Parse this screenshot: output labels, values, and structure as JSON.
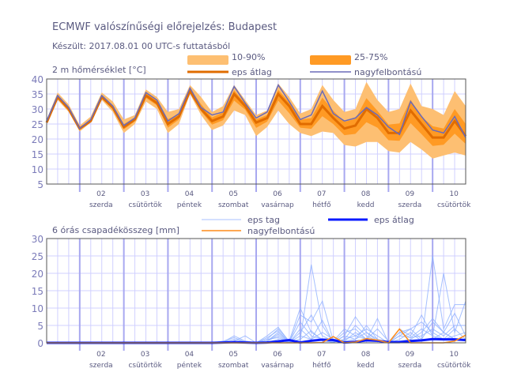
{
  "title": "ECMWF valószínűségi előrejelzés: Budapest",
  "subtitle": "Készült: 2017.08.01 00 UTC-s futtatásból",
  "colors": {
    "band_10_90": "#fdbf72",
    "band_25_75": "#ff9a24",
    "eps_mean_temp": "#e06c00",
    "hres_temp": "#6a6ab8",
    "eps_member": "#8fb0ff",
    "eps_mean_precip": "#0a1aff",
    "hres_precip": "#ff8c1a",
    "grid": "#d0d0ff",
    "day_line": "#a8a8f0"
  },
  "days": [
    {
      "num": "02",
      "name": "szerda"
    },
    {
      "num": "03",
      "name": "csütörtök"
    },
    {
      "num": "04",
      "name": "péntek"
    },
    {
      "num": "05",
      "name": "szombat"
    },
    {
      "num": "06",
      "name": "vasárnap"
    },
    {
      "num": "07",
      "name": "hétfő"
    },
    {
      "num": "08",
      "name": "kedd"
    },
    {
      "num": "09",
      "name": "szerda"
    },
    {
      "num": "10",
      "name": "csütörtök"
    }
  ],
  "chart_data": [
    {
      "type": "area",
      "title": "2 m hőmérséklet [°C]",
      "x_step_hours": 6,
      "ylim": [
        5,
        40
      ],
      "yticks": [
        5,
        10,
        15,
        20,
        25,
        30,
        35,
        40
      ],
      "legend": {
        "band_10_90": "10-90%",
        "band_25_75": "25-75%",
        "eps_mean": "eps átlag",
        "hres": "nagyfelbontású"
      },
      "hres": [
        26,
        34.5,
        30.5,
        23.5,
        26.5,
        34.5,
        31,
        24.5,
        27,
        35.5,
        33,
        26,
        28.5,
        37,
        30.5,
        28,
        29,
        37.5,
        32,
        27,
        29,
        38,
        32.5,
        26.5,
        28,
        36,
        28.5,
        26,
        27,
        30.5,
        28,
        24,
        21.5,
        32.5,
        27.5,
        23,
        22,
        27.5,
        20.5
      ],
      "eps_mean": [
        25.5,
        34,
        30,
        23.5,
        26,
        34,
        30.5,
        24,
        26.5,
        34.5,
        32,
        25,
        27.5,
        36,
        30,
        26,
        27.5,
        35,
        31,
        25.5,
        27,
        35,
        31,
        25,
        25,
        31,
        27,
        23.5,
        24.5,
        30,
        27,
        22,
        22,
        29.5,
        25,
        20.5,
        20.5,
        26,
        21
      ],
      "p10": [
        25,
        33,
        29,
        22.5,
        25.5,
        33,
        29,
        22,
        25,
        32.5,
        30,
        22,
        25,
        35,
        28,
        23,
        24.5,
        29.5,
        28,
        21,
        24,
        29.5,
        25,
        22,
        21,
        22.5,
        22,
        18,
        17.5,
        19,
        19,
        16,
        15.5,
        19,
        16.5,
        13.5,
        14.5,
        15.5,
        14.5
      ],
      "p25": [
        25.3,
        33.6,
        29.6,
        23.1,
        25.8,
        33.6,
        29.9,
        23.2,
        25.9,
        33.7,
        31.2,
        23.8,
        26.5,
        35.6,
        29.2,
        24.8,
        26.3,
        32.8,
        29.8,
        23.7,
        25.8,
        32.8,
        28.6,
        23.8,
        23.4,
        27.6,
        25,
        21.3,
        21.7,
        25.6,
        23.8,
        19.6,
        19.4,
        25.3,
        21.6,
        17.7,
        18.1,
        21.8,
        18.4
      ],
      "p75": [
        25.9,
        34.6,
        30.6,
        23.9,
        26.6,
        34.6,
        31.3,
        25,
        27.1,
        35.3,
        32.8,
        26.6,
        28.5,
        36.8,
        31.6,
        27.2,
        28.9,
        36.2,
        31.8,
        26.5,
        28,
        36.4,
        32.2,
        26.4,
        27,
        33.8,
        29.4,
        25.7,
        26.7,
        33.6,
        29.4,
        24.8,
        25.2,
        33.1,
        27.4,
        24.3,
        23.5,
        30,
        25
      ],
      "p90": [
        26.5,
        35.5,
        31.5,
        24.5,
        27.5,
        35.5,
        32.5,
        26.5,
        28,
        36.5,
        34,
        29,
        30,
        38,
        34,
        29,
        31,
        38,
        33,
        28,
        29.5,
        38.5,
        34,
        28.5,
        30,
        38,
        33,
        29,
        30,
        39,
        33,
        29,
        30,
        38.5,
        31,
        30,
        28,
        36,
        31
      ]
    },
    {
      "type": "line",
      "title": "6 órás csapadékösszeg [mm]",
      "x_step_hours": 6,
      "ylim": [
        0,
        30
      ],
      "yticks": [
        0,
        5,
        10,
        15,
        20,
        25,
        30
      ],
      "legend": {
        "members": "eps tag",
        "eps_mean": "eps átlag",
        "hres": "nagyfelbontású"
      },
      "eps_mean": [
        0,
        0,
        0,
        0,
        0,
        0,
        0,
        0,
        0,
        0,
        0,
        0,
        0,
        0,
        0,
        0,
        0.1,
        0.2,
        0.1,
        0,
        0.1,
        0.4,
        0.8,
        0.1,
        0.6,
        0.9,
        0.8,
        0.1,
        0.3,
        0.7,
        0.6,
        0.2,
        0.2,
        0.5,
        0.7,
        1.1,
        1,
        1,
        0.8
      ],
      "hres": [
        0,
        0,
        0,
        0,
        0,
        0,
        0,
        0,
        0,
        0,
        0,
        0,
        0,
        0,
        0,
        0,
        0,
        0,
        0,
        0,
        0,
        0,
        0,
        0,
        0,
        0.1,
        1.8,
        0,
        0.2,
        1.2,
        0.8,
        0,
        4,
        0,
        0,
        0,
        0,
        0.5,
        2.2
      ],
      "members": [
        [
          0,
          0,
          0,
          0,
          0,
          0,
          0,
          0,
          0,
          0,
          0,
          0,
          0,
          0,
          0,
          0,
          0.5,
          1.5,
          0.3,
          0,
          1,
          4,
          0.5,
          10,
          3,
          1,
          0,
          2,
          7.5,
          3,
          1,
          0,
          2,
          4,
          1,
          6,
          3,
          1,
          0.5
        ],
        [
          0,
          0,
          0,
          0,
          0,
          0,
          0,
          0,
          0,
          0,
          0,
          0,
          0,
          0,
          0,
          0,
          0.2,
          2,
          0.5,
          0,
          2,
          4.5,
          0.3,
          1,
          22.5,
          5,
          0.2,
          1,
          5,
          2,
          0.5,
          0,
          1,
          3,
          0.5,
          25,
          4,
          11,
          11
        ],
        [
          0,
          0,
          0,
          0,
          0,
          0,
          0,
          0,
          0,
          0,
          0,
          0,
          0,
          0,
          0,
          0,
          0,
          0.5,
          2,
          0,
          0.5,
          3,
          0.2,
          8,
          6,
          12,
          0.5,
          0.5,
          1,
          5,
          1,
          0,
          4,
          2,
          8,
          2,
          20,
          3,
          12
        ],
        [
          0,
          0,
          0,
          0,
          0,
          0,
          0,
          0,
          0,
          0,
          0,
          0,
          0,
          0,
          0,
          0,
          0.3,
          1,
          0.2,
          0,
          1.5,
          3.5,
          0.2,
          6,
          2,
          1,
          0.2,
          3,
          4,
          1,
          7,
          0,
          0.5,
          1,
          3,
          7,
          3,
          8.5,
          2
        ],
        [
          0,
          0,
          0,
          0,
          0,
          0,
          0,
          0,
          0,
          0,
          0,
          0,
          0,
          0,
          0,
          0,
          0,
          0.2,
          0.5,
          0,
          0.5,
          2.5,
          0.1,
          3,
          8,
          2,
          0.5,
          4,
          2,
          4,
          2,
          0,
          3,
          1.5,
          2,
          4,
          2,
          5,
          5
        ],
        [
          0,
          0,
          0,
          0,
          0,
          0,
          0,
          0,
          0,
          0,
          0,
          0,
          0,
          0,
          0,
          0,
          0.1,
          0.3,
          0.1,
          0,
          1,
          1.5,
          0.1,
          2,
          1,
          3,
          1,
          0.5,
          3,
          1,
          4,
          0.5,
          0.5,
          0.8,
          1,
          1,
          3,
          1,
          1
        ],
        [
          0,
          0,
          0,
          0,
          0,
          0,
          0,
          0,
          0,
          0,
          0,
          0,
          0,
          0,
          0,
          0,
          0,
          0,
          0,
          0,
          0.2,
          1,
          0,
          1,
          3.5,
          0.5,
          0.2,
          1,
          2,
          1,
          0.5,
          0,
          2,
          1.5,
          4,
          2,
          1,
          2,
          3
        ],
        [
          0,
          0,
          0,
          0,
          0,
          0,
          0,
          0,
          0,
          0,
          0,
          0,
          0,
          0,
          0,
          0,
          0,
          0,
          0,
          0,
          0.5,
          2,
          0,
          4,
          1,
          6.5,
          0.1,
          2,
          1,
          3,
          0.5,
          0,
          3,
          4,
          6,
          3,
          1,
          4,
          1
        ]
      ]
    }
  ]
}
